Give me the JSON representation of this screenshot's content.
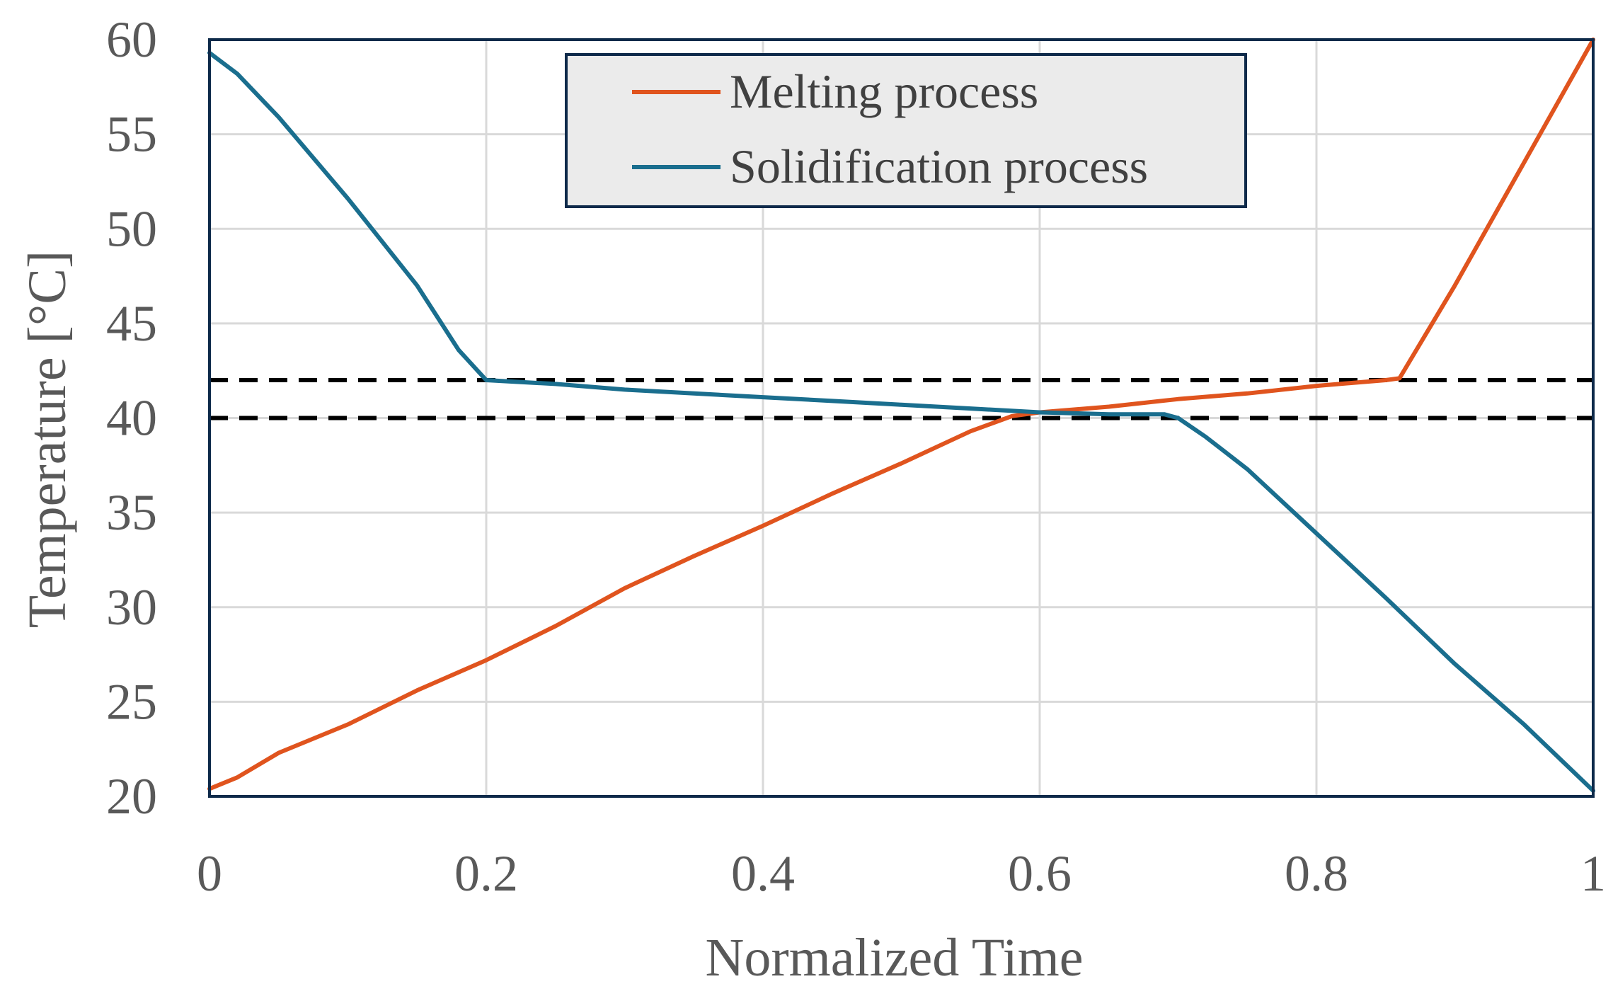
{
  "chart_data": {
    "type": "line",
    "title": "",
    "xlabel": "Normalized Time",
    "ylabel": "Temperature [°C]",
    "xlim": [
      0,
      1
    ],
    "ylim": [
      20,
      60
    ],
    "xticks": [
      0,
      0.2,
      0.4,
      0.6,
      0.8,
      1
    ],
    "xtick_labels": [
      "0",
      "0.2",
      "0.4",
      "0.6",
      "0.8",
      "1"
    ],
    "yticks": [
      20,
      25,
      30,
      35,
      40,
      45,
      50,
      55,
      60
    ],
    "ytick_labels": [
      "20",
      "25",
      "30",
      "35",
      "40",
      "45",
      "50",
      "55",
      "60"
    ],
    "grid": true,
    "legend_position": "top-center",
    "reference_lines": [
      {
        "y": 42,
        "style": "dashed",
        "color": "#000000"
      },
      {
        "y": 40,
        "style": "dashed",
        "color": "#000000"
      }
    ],
    "series": [
      {
        "name": "Melting process",
        "color": "#E0541E",
        "x": [
          0,
          0.02,
          0.05,
          0.1,
          0.15,
          0.2,
          0.25,
          0.3,
          0.35,
          0.4,
          0.45,
          0.5,
          0.55,
          0.58,
          0.6,
          0.65,
          0.7,
          0.75,
          0.8,
          0.85,
          0.86,
          0.9,
          0.95,
          1.0
        ],
        "y": [
          20.4,
          21.0,
          22.3,
          23.8,
          25.6,
          27.2,
          29.0,
          31.0,
          32.7,
          34.3,
          36.0,
          37.6,
          39.3,
          40.1,
          40.3,
          40.6,
          41.0,
          41.3,
          41.7,
          42.0,
          42.1,
          47.0,
          53.5,
          60.0
        ]
      },
      {
        "name": "Solidification process",
        "color": "#1A6E8E",
        "x": [
          0,
          0.02,
          0.05,
          0.1,
          0.15,
          0.18,
          0.2,
          0.25,
          0.3,
          0.35,
          0.4,
          0.45,
          0.5,
          0.55,
          0.6,
          0.65,
          0.69,
          0.7,
          0.72,
          0.75,
          0.8,
          0.85,
          0.9,
          0.95,
          0.98,
          1.0
        ],
        "y": [
          59.3,
          58.2,
          55.9,
          51.6,
          47.0,
          43.6,
          42.0,
          41.8,
          41.5,
          41.3,
          41.1,
          40.9,
          40.7,
          40.5,
          40.3,
          40.2,
          40.2,
          40.0,
          39.0,
          37.3,
          33.9,
          30.5,
          27.0,
          23.8,
          21.7,
          20.3
        ]
      }
    ]
  }
}
